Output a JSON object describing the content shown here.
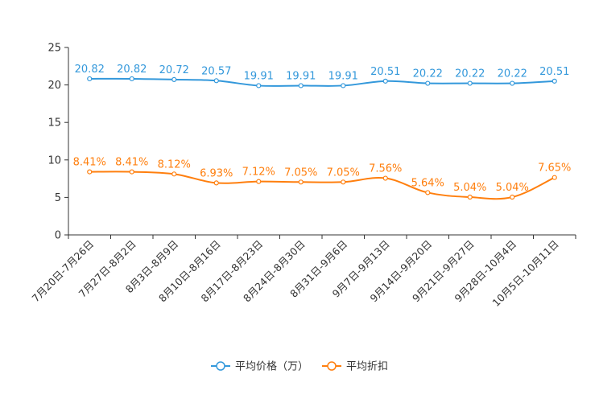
{
  "chart_data": {
    "type": "line",
    "title": "",
    "xlabel": "",
    "ylabel": "",
    "ylim": [
      0,
      25
    ],
    "yticks": [
      0,
      5,
      10,
      15,
      20,
      25
    ],
    "grid": false,
    "legend_position": "bottom-center",
    "categories": [
      "7月20日-7月26日",
      "7月27日-8月2日",
      "8月3日-8月9日",
      "8月10日-8月16日",
      "8月17日-8月23日",
      "8月24日-8月30日",
      "8月31日-9月6日",
      "9月7日-9月13日",
      "9月14日-9月20日",
      "9月21日-9月27日",
      "9月28日-10月4日",
      "10月5日-10月11日"
    ],
    "series": [
      {
        "name": "平均价格（万）",
        "color": "#3398DB",
        "values": [
          20.82,
          20.82,
          20.72,
          20.57,
          19.91,
          19.91,
          19.91,
          20.51,
          20.22,
          20.22,
          20.22,
          20.51
        ],
        "labels": [
          "20.82",
          "20.82",
          "20.72",
          "20.57",
          "19.91",
          "19.91",
          "19.91",
          "20.51",
          "20.22",
          "20.22",
          "20.22",
          "20.51"
        ]
      },
      {
        "name": "平均折扣",
        "color": "#FF7F0E",
        "values": [
          8.41,
          8.41,
          8.12,
          6.93,
          7.12,
          7.05,
          7.05,
          7.56,
          5.64,
          5.04,
          5.04,
          7.65
        ],
        "labels": [
          "8.41%",
          "8.41%",
          "8.12%",
          "6.93%",
          "7.12%",
          "7.05%",
          "7.05%",
          "7.56%",
          "5.64%",
          "5.04%",
          "5.04%",
          "7.65%"
        ]
      }
    ]
  }
}
